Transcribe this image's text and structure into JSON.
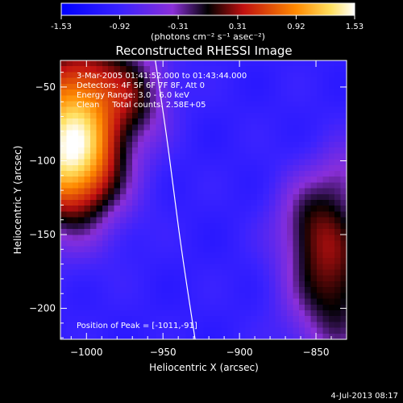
{
  "chart_data": {
    "type": "heatmap",
    "title": "Reconstructed RHESSI Image",
    "xlabel": "Heliocentric X (arcsec)",
    "ylabel": "Heliocentric Y (arcsec)",
    "xlim": [
      -1017,
      -830
    ],
    "ylim": [
      -221,
      -32
    ],
    "xticks": [
      -1000,
      -950,
      -900,
      -850
    ],
    "yticks": [
      -50,
      -100,
      -150,
      -200
    ],
    "colorbar": {
      "range": [
        -1.53,
        1.53
      ],
      "ticks": [
        "-1.53",
        "-0.92",
        "-0.31",
        "0.31",
        "0.92",
        "1.53"
      ],
      "unit_label": "(photons cm⁻² s⁻¹ asec⁻²)"
    },
    "annotations": {
      "time": "3-Mar-2005 01:41:52.000 to 01:43:44.000",
      "detectors": "Detectors: 4F 5F 6F 7F 8F, Att 0",
      "energy": "Energy Range: 3.0 - 6.0 keV",
      "clean": "Clean     Total counts: 2.58E+05",
      "peak": "Position of Peak = [-1011,-91]"
    },
    "sources": [
      {
        "x": -1010,
        "y": -95,
        "amp": 2.45,
        "sx": 24,
        "sy": 34
      },
      {
        "x": -1000,
        "y": -40,
        "amp": 0.9,
        "sx": 30,
        "sy": 25
      },
      {
        "x": -965,
        "y": -60,
        "amp": 0.5,
        "sx": 14,
        "sy": 20
      },
      {
        "x": -838,
        "y": -180,
        "amp": 1.15,
        "sx": 22,
        "sy": 40
      },
      {
        "x": -855,
        "y": -140,
        "amp": 0.55,
        "sx": 16,
        "sy": 22
      },
      {
        "x": -832,
        "y": -110,
        "amp": 0.4,
        "sx": 12,
        "sy": 16
      }
    ],
    "background": -1.0,
    "peak": [
      -1011,
      -91
    ],
    "limb_curve": [
      [
        -955,
        -32
      ],
      [
        -948,
        -80
      ],
      [
        -943,
        -120
      ],
      [
        -938,
        -160
      ],
      [
        -929,
        -221
      ]
    ],
    "colors": {
      "background": "#000000",
      "text": "#ffffff",
      "limb": "#ffffff"
    }
  },
  "footer": {
    "date": "4-Jul-2013 08:17"
  }
}
